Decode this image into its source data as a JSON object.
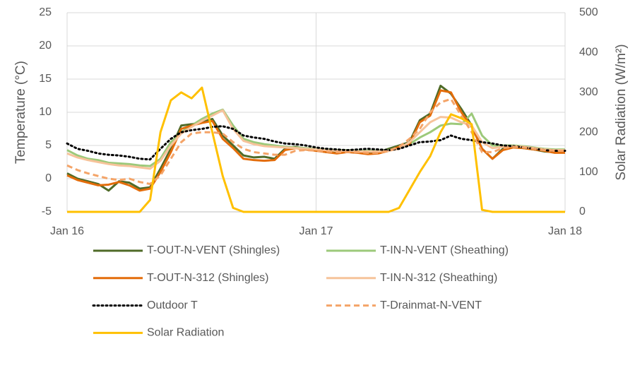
{
  "chart_data": {
    "type": "line",
    "y_label": "Temperature (°C)",
    "y2_label": "Solar Radiation (W/m²)",
    "x": [
      0,
      1,
      2,
      3,
      4,
      5,
      6,
      7,
      8,
      9,
      10,
      11,
      12,
      13,
      14,
      15,
      16,
      17,
      18,
      19,
      20,
      21,
      22,
      23,
      24,
      25,
      26,
      27,
      28,
      29,
      30,
      31,
      32,
      33,
      34,
      35,
      36,
      37,
      38,
      39,
      40,
      41,
      42,
      43,
      44,
      45,
      46,
      47,
      48
    ],
    "xlim": [
      0,
      48
    ],
    "xticks": [
      {
        "value": 0,
        "label": "Jan 16"
      },
      {
        "value": 24,
        "label": "Jan 17"
      },
      {
        "value": 48,
        "label": "Jan 18"
      }
    ],
    "ylim": [
      -5,
      25
    ],
    "yticks": [
      -5,
      0,
      5,
      10,
      15,
      20,
      25
    ],
    "y2lim": [
      0,
      500
    ],
    "y2ticks": [
      0,
      100,
      200,
      300,
      400,
      500
    ],
    "grid": true,
    "series": [
      {
        "name": "T-OUT-N-VENT (Shingles)",
        "color": "#4f6b28",
        "line_style": "solid",
        "values": [
          0.8,
          0,
          -0.4,
          -0.8,
          -1.8,
          -0.4,
          -0.6,
          -1.5,
          -1.3,
          1.5,
          4.5,
          8.0,
          8.2,
          8.5,
          9.0,
          6.5,
          5.0,
          3.5,
          3.2,
          3.3,
          3.0,
          4.5,
          4.8,
          4.5,
          4.3,
          4.0,
          3.9,
          4.2,
          4.1,
          3.8,
          4.0,
          4.5,
          5.0,
          5.5,
          8.8,
          9.8,
          14.0,
          12.8,
          10.5,
          8.0,
          4.5,
          3.0,
          4.5,
          4.9,
          4.6,
          4.4,
          4.1,
          4.0,
          4.0
        ]
      },
      {
        "name": "T-IN-N-VENT (Sheathing)",
        "color": "#9cc97a",
        "line_style": "solid",
        "values": [
          4.3,
          3.5,
          3.0,
          2.8,
          2.4,
          2.3,
          2.2,
          2.0,
          1.9,
          3.0,
          5.5,
          7.0,
          8.0,
          9.0,
          9.8,
          10.4,
          8.0,
          6.0,
          5.5,
          5.2,
          5.0,
          4.8,
          4.7,
          4.6,
          4.5,
          4.4,
          4.3,
          4.3,
          4.2,
          4.2,
          4.2,
          4.3,
          4.6,
          5.2,
          6.2,
          7.0,
          8.0,
          8.3,
          8.2,
          9.8,
          6.5,
          5.0,
          5.0,
          5.0,
          4.9,
          4.7,
          4.5,
          4.4,
          4.4
        ]
      },
      {
        "name": "T-OUT-N-312 (Shingles)",
        "color": "#e36c0a",
        "line_style": "solid",
        "values": [
          0.5,
          -0.2,
          -0.6,
          -1.0,
          -0.9,
          -0.5,
          -1.0,
          -1.8,
          -1.5,
          1.0,
          4.0,
          7.5,
          8.0,
          8.4,
          8.7,
          6.0,
          4.6,
          3.0,
          2.8,
          2.7,
          2.8,
          4.3,
          4.6,
          4.4,
          4.2,
          4.0,
          3.8,
          4.0,
          3.9,
          3.7,
          3.8,
          4.2,
          4.8,
          5.2,
          8.5,
          9.5,
          13.3,
          13.0,
          10.0,
          7.8,
          4.5,
          3.0,
          4.3,
          4.7,
          4.6,
          4.4,
          4.2,
          3.9,
          3.9
        ]
      },
      {
        "name": "T-IN-N-312 (Sheathing)",
        "color": "#f6c39a",
        "line_style": "solid",
        "values": [
          3.8,
          3.2,
          2.8,
          2.5,
          2.2,
          2.0,
          1.9,
          1.7,
          1.5,
          2.7,
          5.0,
          6.8,
          7.8,
          8.7,
          9.5,
          10.3,
          7.5,
          5.7,
          5.2,
          4.9,
          4.8,
          4.7,
          4.6,
          4.5,
          4.4,
          4.3,
          4.2,
          4.2,
          4.1,
          4.1,
          4.1,
          4.2,
          4.5,
          5.5,
          7.0,
          8.5,
          9.3,
          9.2,
          8.5,
          8.0,
          5.5,
          4.6,
          4.8,
          4.9,
          4.8,
          4.6,
          4.4,
          4.3,
          4.3
        ]
      },
      {
        "name": "Outdoor T",
        "color": "#000000",
        "line_style": "dotted",
        "values": [
          5.3,
          4.5,
          4.2,
          3.8,
          3.6,
          3.5,
          3.3,
          3.0,
          2.9,
          4.5,
          6.0,
          7.0,
          7.3,
          7.5,
          7.8,
          7.9,
          7.5,
          6.5,
          6.2,
          6.0,
          5.6,
          5.3,
          5.2,
          5.0,
          4.7,
          4.5,
          4.4,
          4.3,
          4.4,
          4.5,
          4.4,
          4.3,
          4.5,
          5.0,
          5.5,
          5.6,
          5.8,
          6.5,
          6.0,
          5.8,
          5.5,
          5.3,
          5.0,
          4.9,
          4.7,
          4.5,
          4.3,
          4.2,
          4.2
        ]
      },
      {
        "name": "T-Drainmat-N-VENT",
        "color": "#f4a468",
        "line_style": "dashed",
        "values": [
          2.0,
          1.3,
          0.8,
          0.4,
          0.0,
          -0.2,
          0.0,
          -0.5,
          -0.8,
          0.5,
          3.0,
          5.5,
          6.8,
          7.0,
          7.0,
          6.8,
          5.5,
          4.5,
          4.0,
          3.8,
          3.6,
          3.6,
          4.2,
          4.3,
          4.2,
          4.1,
          4.0,
          4.0,
          4.0,
          3.9,
          3.9,
          4.2,
          4.8,
          6.0,
          7.5,
          10.0,
          11.5,
          12.0,
          9.5,
          7.0,
          4.0,
          4.0,
          4.6,
          4.8,
          4.7,
          4.5,
          4.3,
          4.2,
          4.2
        ]
      },
      {
        "name": "Solar Radiation",
        "color": "#ffc000",
        "line_style": "solid",
        "axis": "y2",
        "values": [
          0,
          0,
          0,
          0,
          0,
          0,
          0,
          0,
          30,
          200,
          280,
          300,
          285,
          312,
          200,
          90,
          10,
          0,
          0,
          0,
          0,
          0,
          0,
          0,
          0,
          0,
          0,
          0,
          0,
          0,
          0,
          0,
          10,
          55,
          100,
          140,
          200,
          245,
          235,
          220,
          5,
          0,
          0,
          0,
          0,
          0,
          0,
          0,
          0
        ]
      }
    ]
  }
}
